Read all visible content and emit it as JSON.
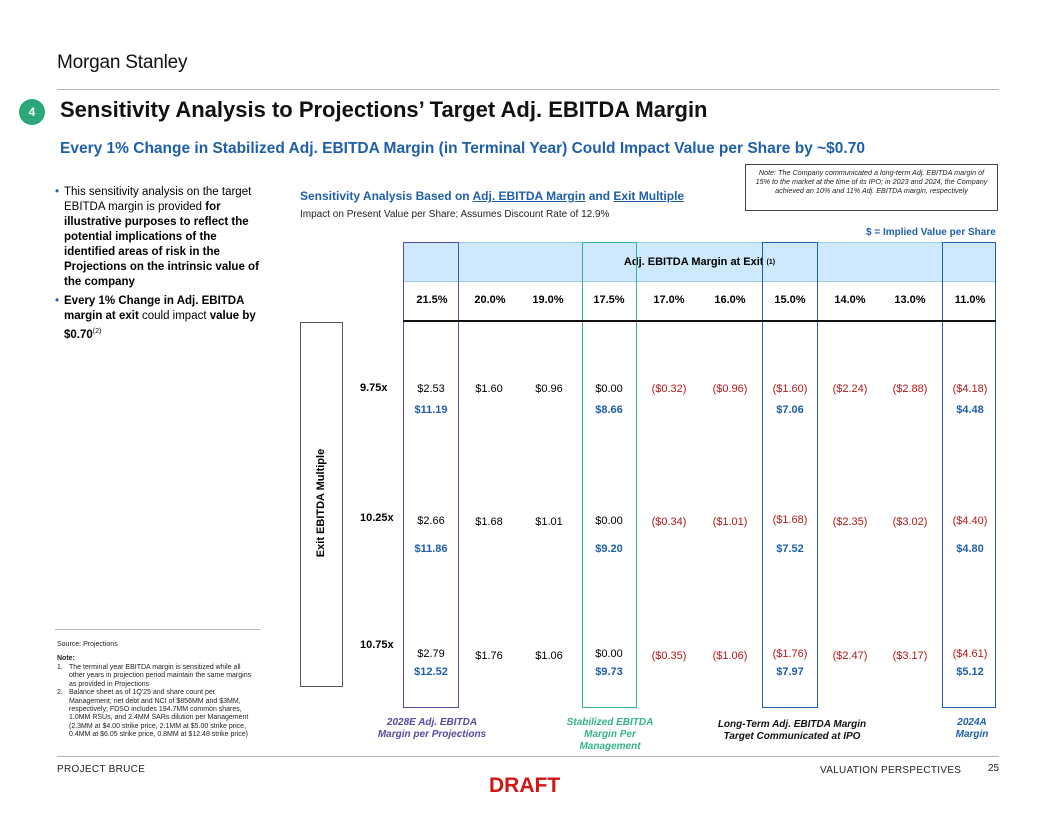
{
  "header": {
    "logo": "Morgan Stanley",
    "badge": "4",
    "title": "Sensitivity Analysis to Projections’ Target Adj. EBITDA Margin",
    "subtitle": "Every 1% Change in Stabilized Adj. EBITDA Margin (in Terminal Year) Could Impact Value per Share by ~$0.70"
  },
  "bullets": {
    "b1_pre": "This sensitivity analysis on the target EBITDA margin is provided ",
    "b1_bold": "for illustrative purposes to reflect the potential implications of the identified areas of risk in the Projections on the intrinsic value of the company",
    "b2_bold1": "Every 1% Change in Adj. EBITDA margin at exit",
    "b2_mid": " could impact ",
    "b2_bold2": "value by $0.70",
    "b2_sup": "(2)"
  },
  "note_box": "Note: The Company communicated a long-term Adj. EBITDA margin of 15% to the market at the time of its IPO; in 2023 and 2024, the Company achieved an 10% and 11% Adj. EBITDA margin, respectively",
  "sensitivity": {
    "heading_pre": "Sensitivity Analysis Based on ",
    "heading_link1": "Adj. EBITDA Margin",
    "heading_mid": " and ",
    "heading_link2": "Exit Multiple",
    "subheading": "Impact on Present Value per Share; Assumes Discount Rate of 12.9%",
    "legend": "$ = Implied Value per Share",
    "margin_header": "Adj. EBITDA Margin at Exit ",
    "margin_header_sup": "(1)",
    "exit_label": "Exit EBITDA Multiple",
    "columns": [
      "21.5%",
      "20.0%",
      "19.0%",
      "17.5%",
      "17.0%",
      "16.0%",
      "15.0%",
      "14.0%",
      "13.0%",
      "11.0%"
    ],
    "rows": [
      {
        "label": "9.75x",
        "changes": [
          "$2.53",
          "$1.60",
          "$0.96",
          "$0.00",
          "($0.32)",
          "($0.96)",
          "($1.60)",
          "($2.24)",
          "($2.88)",
          "($4.18)"
        ],
        "values": [
          "$11.19",
          "$8.66",
          "$7.06",
          "$4.48"
        ]
      },
      {
        "label": "10.25x",
        "changes": [
          "$2.66",
          "$1.68",
          "$1.01",
          "$0.00",
          "($0.34)",
          "($1.01)",
          "($1.68)",
          "($2.35)",
          "($3.02)",
          "($4.40)"
        ],
        "values": [
          "$11.86",
          "$9.20",
          "$7.52",
          "$4.80"
        ]
      },
      {
        "label": "10.75x",
        "changes": [
          "$2.79",
          "$1.76",
          "$1.06",
          "$0.00",
          "($0.35)",
          "($1.06)",
          "($1.76)",
          "($2.47)",
          "($3.17)",
          "($4.61)"
        ],
        "values": [
          "$12.52",
          "$9.73",
          "$7.97",
          "$5.12"
        ]
      }
    ],
    "captions": {
      "c1": "2028E Adj. EBITDA Margin per Projections",
      "c2": "Stabilized EBITDA Margin Per Management",
      "c3": "Long-Term Adj. EBITDA Margin Target Communicated at IPO",
      "c4": "2024A Margin"
    },
    "colors": {
      "projections": "#5a4a9c",
      "management": "#35b38a",
      "ipo": "#1f5fa8",
      "actual": "#1f5fa8",
      "negative": "#b11a1a"
    }
  },
  "footnotes": {
    "source": "Source: Projections",
    "note_label": "Note:",
    "n1": "The terminal year EBITDA margin is sensitized while all other years in projection period maintain the same margins as provided in Projections",
    "n2": "Balance sheet as of 1Q'25 and share count per Management; net debt and NCI of $856MM and $3MM, respectively; FDSO includes 194.7MM common shares, 1.0MM RSUs, and 2.4MM SARs dilution per Management (2.3MM at $4.00 strike price, 2.1MM at $5.00 strike price, 0.4MM at $6.05 strike price, 0.8MM at $12.48 strike price)"
  },
  "footer": {
    "left": "PROJECT BRUCE",
    "right": "VALUATION PERSPECTIVES",
    "page": "25",
    "draft": "DRAFT"
  }
}
